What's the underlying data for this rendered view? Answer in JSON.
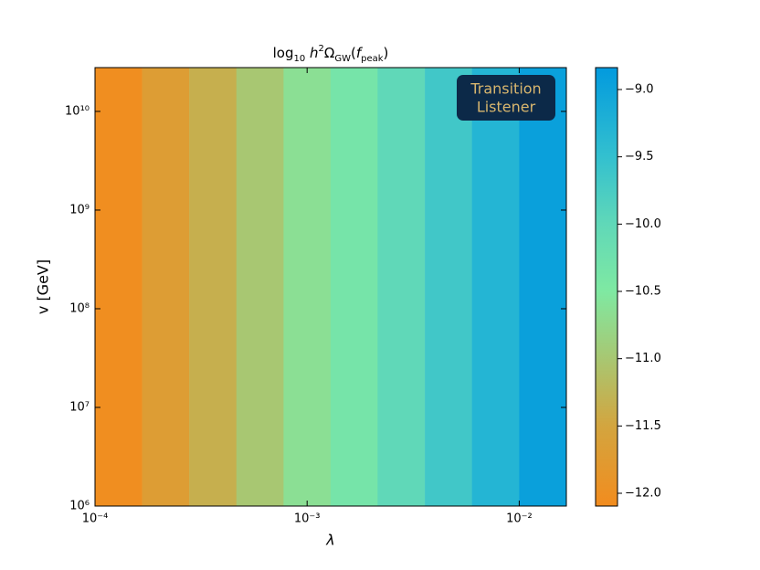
{
  "chart_data": {
    "type": "heatmap",
    "title": [
      {
        "text": "log"
      },
      {
        "text": "10",
        "sub": true
      },
      {
        "text": " h",
        "italic": true
      },
      {
        "text": "2",
        "sup": true
      },
      {
        "text": "Ω"
      },
      {
        "text": "GW",
        "sub": true
      },
      {
        "text": "("
      },
      {
        "text": "f",
        "italic": true
      },
      {
        "text": "peak",
        "sub": true
      },
      {
        "text": ")"
      }
    ],
    "xlabel": "λ",
    "ylabel": "v [GeV]",
    "xscale": "log",
    "yscale": "log",
    "xlim": [
      0.0001,
      0.01668
    ],
    "ylim": [
      1000000,
      27800000000
    ],
    "xbins": [
      0.0001,
      0.0001667,
      0.000278,
      0.000464,
      0.000774,
      0.00129,
      0.00215,
      0.00359,
      0.00599,
      0.01,
      0.01668
    ],
    "values": [
      -12.05,
      -11.7,
      -11.35,
      -11.0,
      -10.65,
      -10.35,
      -10.0,
      -9.65,
      -9.3,
      -8.95
    ],
    "xticks": [
      {
        "value": 0.0001,
        "label": "10⁻⁴"
      },
      {
        "value": 0.001,
        "label": "10⁻³"
      },
      {
        "value": 0.01,
        "label": "10⁻²"
      }
    ],
    "yticks": [
      {
        "value": 1000000,
        "label": "10⁶"
      },
      {
        "value": 10000000,
        "label": "10⁷"
      },
      {
        "value": 100000000,
        "label": "10⁸"
      },
      {
        "value": 1000000000,
        "label": "10⁹"
      },
      {
        "value": 10000000000,
        "label": "10¹⁰"
      }
    ],
    "clim": [
      -12.095,
      -8.837
    ],
    "cticks": [
      {
        "value": -9.0,
        "label": "−9.0"
      },
      {
        "value": -9.5,
        "label": "−9.5"
      },
      {
        "value": -10.0,
        "label": "−10.0"
      },
      {
        "value": -10.5,
        "label": "−10.5"
      },
      {
        "value": -11.0,
        "label": "−11.0"
      },
      {
        "value": -11.5,
        "label": "−11.5"
      },
      {
        "value": -12.0,
        "label": "−12.0"
      }
    ],
    "colorscale": [
      [
        -12.095,
        "#f28c1e"
      ],
      [
        -11.5,
        "#d3a53f"
      ],
      [
        -11.0,
        "#a8c772"
      ],
      [
        -10.5,
        "#7fe9a2"
      ],
      [
        -10.0,
        "#60d8b8"
      ],
      [
        -9.5,
        "#33c0cf"
      ],
      [
        -8.837,
        "#029ade"
      ]
    ],
    "annotation": [
      "Transition",
      "Listener"
    ]
  }
}
